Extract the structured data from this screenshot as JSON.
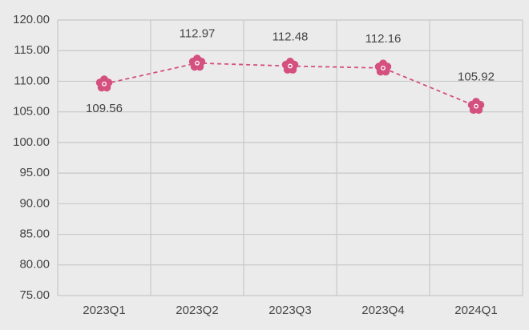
{
  "chart_data": {
    "type": "line",
    "categories": [
      "2023Q1",
      "2023Q2",
      "2023Q3",
      "2023Q4",
      "2024Q1"
    ],
    "series": [
      {
        "color": "#d4507f",
        "values": [
          109.56,
          112.97,
          112.48,
          112.16,
          105.92
        ]
      }
    ],
    "ylim": [
      75,
      120
    ],
    "yticks": [
      {
        "value": 75,
        "label": "75.00"
      },
      {
        "value": 80,
        "label": "80.00"
      },
      {
        "value": 85,
        "label": "85.00"
      },
      {
        "value": 90,
        "label": "90.00"
      },
      {
        "value": 95,
        "label": "95.00"
      },
      {
        "value": 100,
        "label": "100.00"
      },
      {
        "value": 105,
        "label": "105.00"
      },
      {
        "value": 110,
        "label": "110.00"
      },
      {
        "value": 115,
        "label": "115.00"
      },
      {
        "value": 120,
        "label": "120.00"
      }
    ],
    "grid": true
  }
}
